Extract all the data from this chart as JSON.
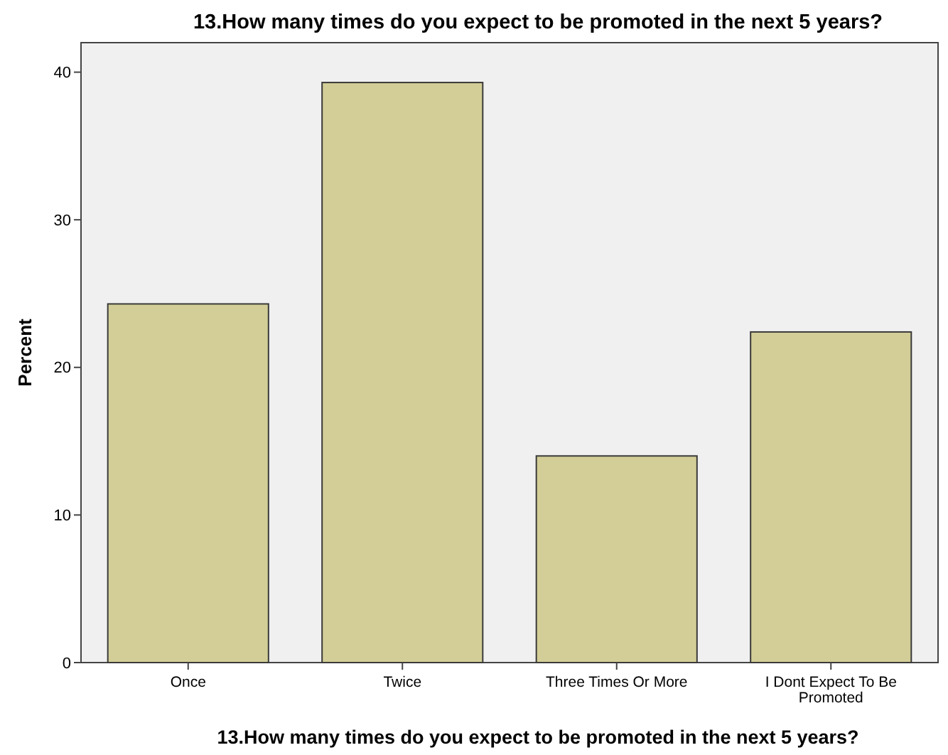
{
  "chart_data": {
    "type": "bar",
    "title": "13.How many times do you expect to be promoted in the next 5 years?",
    "xlabel": "13.How many times do you expect to be promoted in the next 5 years?",
    "ylabel": "Percent",
    "categories": [
      "Once",
      "Twice",
      "Three Times Or More",
      "I Dont Expect To Be Promoted"
    ],
    "values": [
      24.3,
      39.3,
      14.0,
      22.4
    ],
    "color": "#d3ce97",
    "ylim": [
      0,
      42
    ],
    "yticks": [
      0,
      10,
      20,
      30,
      40
    ],
    "grid": false
  }
}
